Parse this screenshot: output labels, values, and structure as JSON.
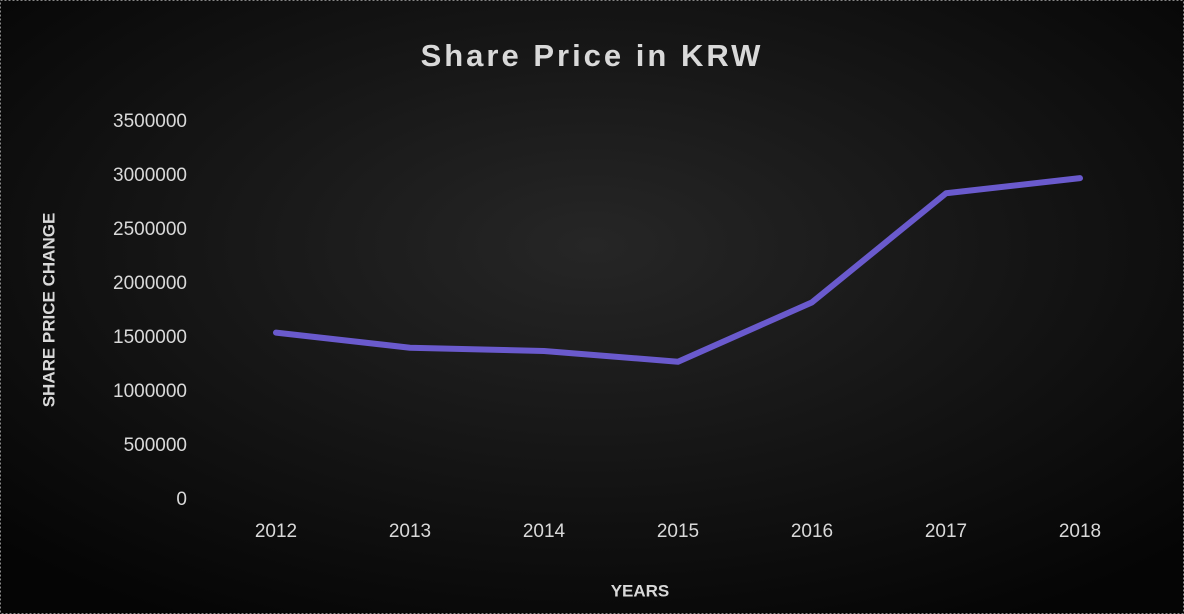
{
  "chart_data": {
    "type": "line",
    "title": "Share Price in KRW",
    "x_label": "YEARS",
    "y_label": "SHARE PRICE CHANGE",
    "categories": [
      "2012",
      "2013",
      "2014",
      "2015",
      "2016",
      "2017",
      "2018"
    ],
    "series": [
      {
        "name": "Share Price",
        "color": "#6a5acd",
        "values": [
          1550000,
          1410000,
          1380000,
          1280000,
          1830000,
          2840000,
          2980000
        ]
      }
    ],
    "ylim": [
      0,
      3500000
    ],
    "yticks": [
      0,
      500000,
      1000000,
      1500000,
      2000000,
      2500000,
      3000000,
      3500000
    ],
    "grid": false
  }
}
